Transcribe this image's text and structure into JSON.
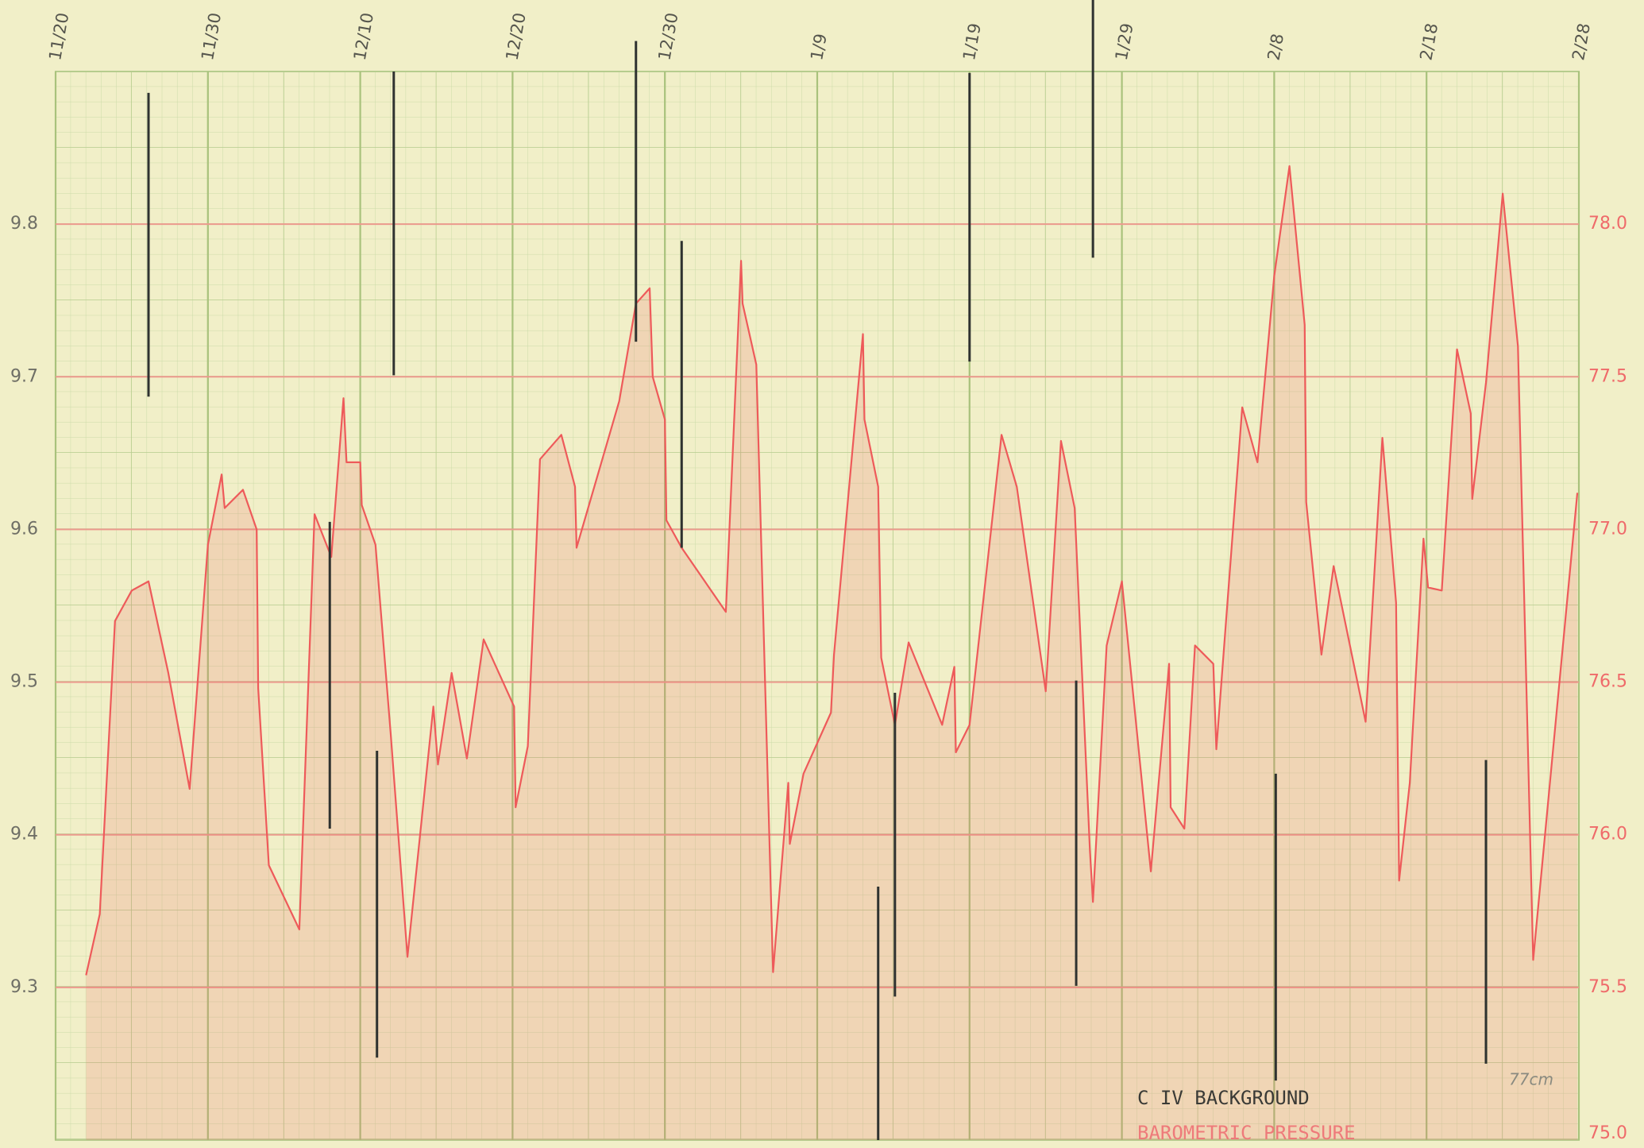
{
  "chart_data": {
    "type": "line",
    "xlim": [
      0,
      100
    ],
    "xticks": [
      {
        "value": 0,
        "label": "11/20"
      },
      {
        "value": 10,
        "label": "11/30"
      },
      {
        "value": 20,
        "label": "12/10"
      },
      {
        "value": 30,
        "label": "12/20"
      },
      {
        "value": 40,
        "label": "12/30"
      },
      {
        "value": 50,
        "label": "1/9"
      },
      {
        "value": 60,
        "label": "1/19"
      },
      {
        "value": 70,
        "label": "1/29"
      },
      {
        "value": 80,
        "label": "2/8"
      },
      {
        "value": 90,
        "label": "2/18"
      },
      {
        "value": 100,
        "label": "2/28"
      }
    ],
    "ylim": [
      9.2,
      9.9
    ],
    "yticks": [
      9.3,
      9.4,
      9.5,
      9.6,
      9.7,
      9.8
    ],
    "y2lim": [
      75.0,
      78.5
    ],
    "y2ticks": [
      {
        "value": 75,
        "label": "75.0"
      },
      75.5,
      {
        "value": 76,
        "label": "76.0"
      },
      76.5,
      {
        "value": 77,
        "label": "77.0"
      },
      77.5,
      {
        "value": 78,
        "label": "78.0"
      }
    ],
    "grid": true,
    "series": [
      {
        "color": "#ee5a5a",
        "axis": "y2",
        "fill": true,
        "x": [
          2.0,
          2.9,
          3.9,
          5.0,
          6.1,
          7.4,
          8.8,
          10.0,
          10.9,
          11.1,
          12.3,
          13.2,
          13.3,
          14.0,
          16.0,
          17.0,
          18.1,
          18.9,
          19.1,
          20.0,
          20.1,
          21.0,
          22.0,
          23.1,
          24.8,
          25.1,
          26.0,
          27.0,
          28.1,
          30.1,
          30.2,
          31.0,
          31.8,
          33.2,
          34.1,
          34.2,
          37.0,
          38.1,
          39.0,
          39.2,
          40.0,
          40.1,
          41.1,
          44.0,
          45.0,
          45.1,
          46.0,
          47.1,
          48.1,
          48.2,
          49.1,
          50.9,
          51.1,
          53.0,
          53.1,
          54.0,
          54.2,
          55.1,
          56.0,
          58.2,
          59.0,
          59.1,
          60.0,
          62.1,
          63.1,
          65.0,
          66.0,
          66.9,
          67.9,
          68.1,
          69.0,
          70.0,
          71.9,
          73.1,
          73.2,
          74.1,
          74.8,
          76.0,
          76.2,
          77.9,
          78.9,
          80.0,
          81.0,
          82.0,
          82.1,
          83.1,
          83.9,
          86.0,
          87.1,
          88.0,
          88.2,
          88.9,
          89.8,
          90.1,
          91.0,
          92.0,
          92.9,
          93.0,
          93.9,
          95.0,
          96.0,
          97.0,
          99.9
        ],
        "values": [
          75.54,
          75.74,
          76.7,
          76.8,
          76.83,
          76.53,
          76.15,
          76.95,
          77.18,
          77.07,
          77.13,
          77.0,
          76.48,
          75.9,
          75.69,
          77.05,
          76.91,
          77.43,
          77.22,
          77.22,
          77.08,
          76.95,
          76.33,
          75.6,
          76.42,
          76.23,
          76.53,
          76.25,
          76.64,
          76.42,
          76.09,
          76.29,
          77.23,
          77.31,
          77.14,
          76.94,
          77.42,
          77.74,
          77.79,
          77.5,
          77.36,
          77.03,
          76.94,
          76.73,
          77.88,
          77.74,
          77.54,
          75.55,
          76.17,
          75.97,
          76.2,
          76.4,
          76.59,
          77.64,
          77.36,
          77.14,
          76.58,
          76.36,
          76.63,
          76.36,
          76.55,
          76.27,
          76.36,
          77.31,
          77.14,
          76.47,
          77.29,
          77.07,
          75.95,
          75.78,
          76.62,
          76.83,
          75.88,
          76.56,
          76.09,
          76.02,
          76.62,
          76.56,
          76.28,
          77.4,
          77.22,
          77.83,
          78.19,
          77.67,
          77.09,
          76.59,
          76.88,
          76.37,
          77.3,
          76.76,
          75.85,
          76.17,
          76.97,
          76.81,
          76.8,
          77.59,
          77.38,
          77.1,
          77.48,
          78.1,
          77.6,
          75.59,
          77.12
        ]
      },
      {
        "type": "range",
        "color": "#2f3230",
        "x": [
          6.1,
          18.0,
          21.1,
          22.2,
          38.1,
          41.1,
          54.0,
          55.1,
          60.0,
          67.0,
          68.1,
          80.1,
          93.9
        ],
        "low": [
          9.687,
          9.404,
          9.254,
          9.701,
          9.723,
          9.588,
          9.2,
          9.294,
          9.71,
          9.301,
          9.778,
          9.239,
          9.25
        ],
        "high": [
          9.886,
          9.605,
          9.455,
          9.9,
          9.92,
          9.789,
          9.366,
          9.493,
          9.899,
          9.501,
          9.95,
          9.44,
          9.449
        ]
      }
    ],
    "annotations": [
      "C IV BACKGROUND",
      "BAROMETRIC PRESSURE",
      "77cm"
    ]
  }
}
